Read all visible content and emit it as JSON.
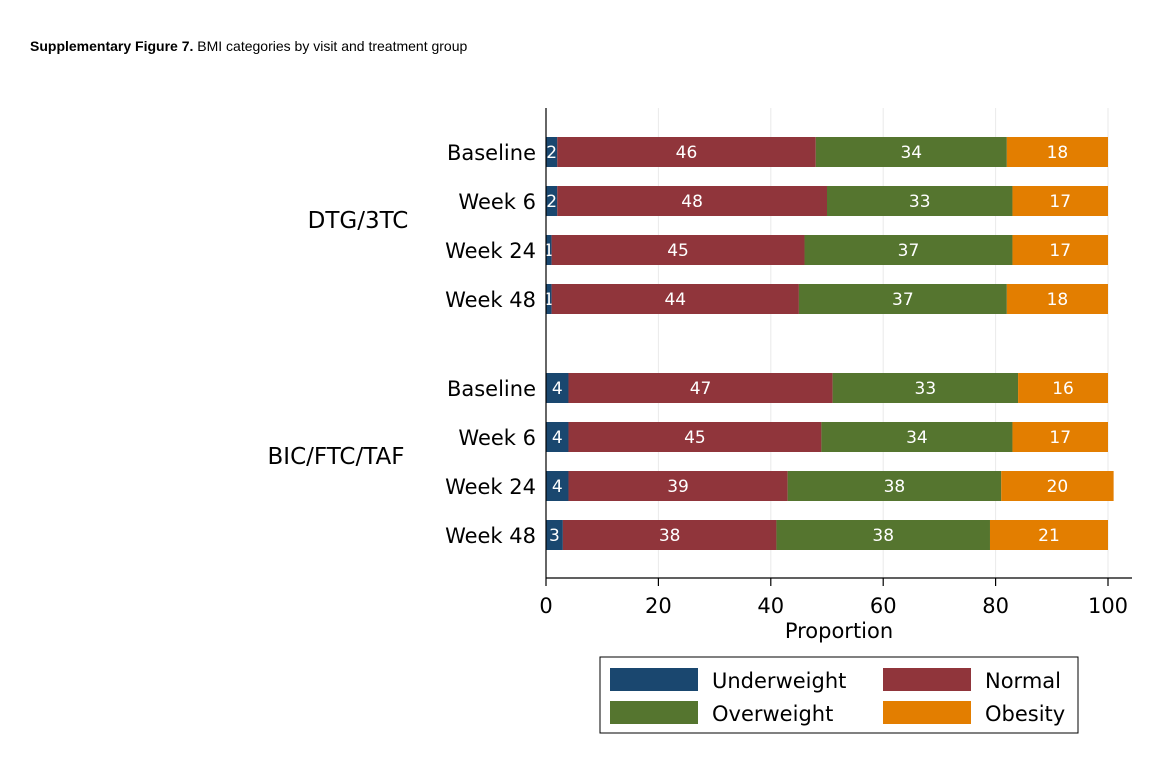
{
  "caption": {
    "bold": "Supplementary Figure 7.",
    "text": " BMI categories by visit and treatment group"
  },
  "chart_data": {
    "type": "bar",
    "orientation": "horizontal",
    "stacked": true,
    "xlabel": "Proportion",
    "xlim": [
      0,
      100
    ],
    "xticks": [
      0,
      20,
      40,
      60,
      80,
      100
    ],
    "grid": true,
    "legend_position": "bottom",
    "groups": [
      {
        "name": "DTG/3TC",
        "categories": [
          "Baseline",
          "Week 6",
          "Week 24",
          "Week 48"
        ],
        "series": [
          {
            "name": "Underweight",
            "values": [
              2,
              2,
              1,
              1
            ]
          },
          {
            "name": "Normal",
            "values": [
              46,
              48,
              45,
              44
            ]
          },
          {
            "name": "Overweight",
            "values": [
              34,
              33,
              37,
              37
            ]
          },
          {
            "name": "Obesity",
            "values": [
              18,
              17,
              17,
              18
            ]
          }
        ]
      },
      {
        "name": "BIC/FTC/TAF",
        "categories": [
          "Baseline",
          "Week 6",
          "Week 24",
          "Week 48"
        ],
        "series": [
          {
            "name": "Underweight",
            "values": [
              4,
              4,
              4,
              3
            ]
          },
          {
            "name": "Normal",
            "values": [
              47,
              45,
              39,
              38
            ]
          },
          {
            "name": "Overweight",
            "values": [
              33,
              34,
              38,
              38
            ]
          },
          {
            "name": "Obesity",
            "values": [
              16,
              17,
              20,
              21
            ]
          }
        ]
      }
    ],
    "legend": [
      "Underweight",
      "Normal",
      "Overweight",
      "Obesity"
    ],
    "colors": {
      "Underweight": "#1a476f",
      "Normal": "#90353b",
      "Overweight": "#55752f",
      "Obesity": "#e37e00"
    }
  }
}
